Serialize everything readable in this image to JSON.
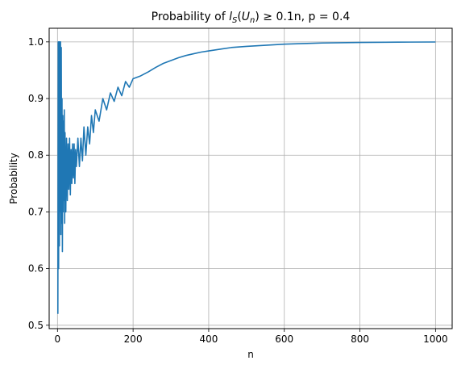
{
  "chart_data": {
    "type": "line",
    "title": {
      "prefix": "Probability of ",
      "l": "l",
      "l_sub": "S",
      "paren_open": "(",
      "u": "U",
      "u_sub": "n",
      "rest": ") ≥ 0.1n,  p = 0.4"
    },
    "xlabel": "n",
    "ylabel": "Probability",
    "xlim": [
      -22,
      1044
    ],
    "ylim": [
      0.494,
      1.024
    ],
    "xticks": [
      0,
      200,
      400,
      600,
      800,
      1000
    ],
    "xtick_labels": [
      "0",
      "200",
      "400",
      "600",
      "800",
      "1000"
    ],
    "yticks": [
      0.5,
      0.6,
      0.7,
      0.8,
      0.9,
      1.0
    ],
    "ytick_labels": [
      "0.5",
      "0.6",
      "0.7",
      "0.8",
      "0.9",
      "1.0"
    ],
    "grid": true,
    "series": [
      {
        "color": "#1f77b4",
        "x": [
          1,
          2,
          3,
          4,
          5,
          6,
          7,
          8,
          9,
          10,
          11,
          12,
          13,
          14,
          15,
          16,
          17,
          18,
          19,
          20,
          22,
          24,
          26,
          28,
          30,
          32,
          34,
          36,
          38,
          40,
          42,
          44,
          46,
          48,
          50,
          54,
          58,
          62,
          66,
          70,
          75,
          80,
          85,
          90,
          95,
          100,
          110,
          120,
          130,
          140,
          150,
          160,
          170,
          180,
          190,
          200,
          220,
          240,
          260,
          280,
          300,
          320,
          340,
          360,
          380,
          400,
          430,
          460,
          500,
          550,
          600,
          650,
          700,
          800,
          900,
          1000
        ],
        "y": [
          0.52,
          1.0,
          0.6,
          1.0,
          0.64,
          1.0,
          0.7,
          1.0,
          0.66,
          0.99,
          0.68,
          0.9,
          0.63,
          0.87,
          0.7,
          0.86,
          0.72,
          0.88,
          0.68,
          0.84,
          0.7,
          0.83,
          0.72,
          0.82,
          0.74,
          0.83,
          0.73,
          0.81,
          0.75,
          0.82,
          0.76,
          0.82,
          0.75,
          0.81,
          0.78,
          0.83,
          0.78,
          0.83,
          0.79,
          0.85,
          0.8,
          0.85,
          0.82,
          0.87,
          0.84,
          0.88,
          0.86,
          0.9,
          0.88,
          0.91,
          0.895,
          0.92,
          0.905,
          0.93,
          0.92,
          0.935,
          0.94,
          0.947,
          0.955,
          0.962,
          0.967,
          0.972,
          0.976,
          0.979,
          0.982,
          0.984,
          0.987,
          0.99,
          0.992,
          0.994,
          0.996,
          0.997,
          0.998,
          0.999,
          0.9995,
          0.9998
        ]
      }
    ]
  }
}
